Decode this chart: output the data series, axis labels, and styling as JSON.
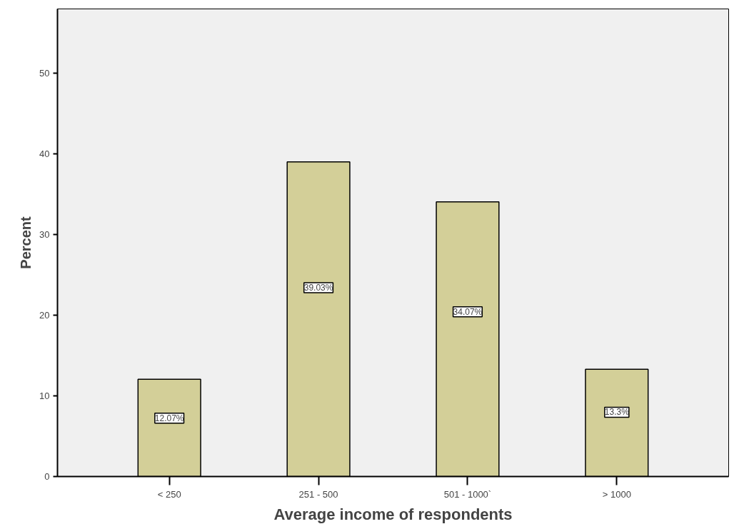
{
  "chart_data": {
    "type": "bar",
    "xlabel": "Average income of respondents",
    "ylabel": "Percent",
    "categories": [
      "< 250",
      "251 - 500",
      "501 - 1000`",
      "> 1000"
    ],
    "values": [
      12.07,
      39.03,
      34.07,
      13.3
    ],
    "color": "#d3cf98",
    "value_labels": [
      "12.07%",
      "39.03%",
      "34.07%",
      "13.3%"
    ],
    "ylim": [
      0,
      58
    ],
    "yticks": [
      0,
      10,
      20,
      30,
      40,
      50
    ],
    "grid": false
  }
}
